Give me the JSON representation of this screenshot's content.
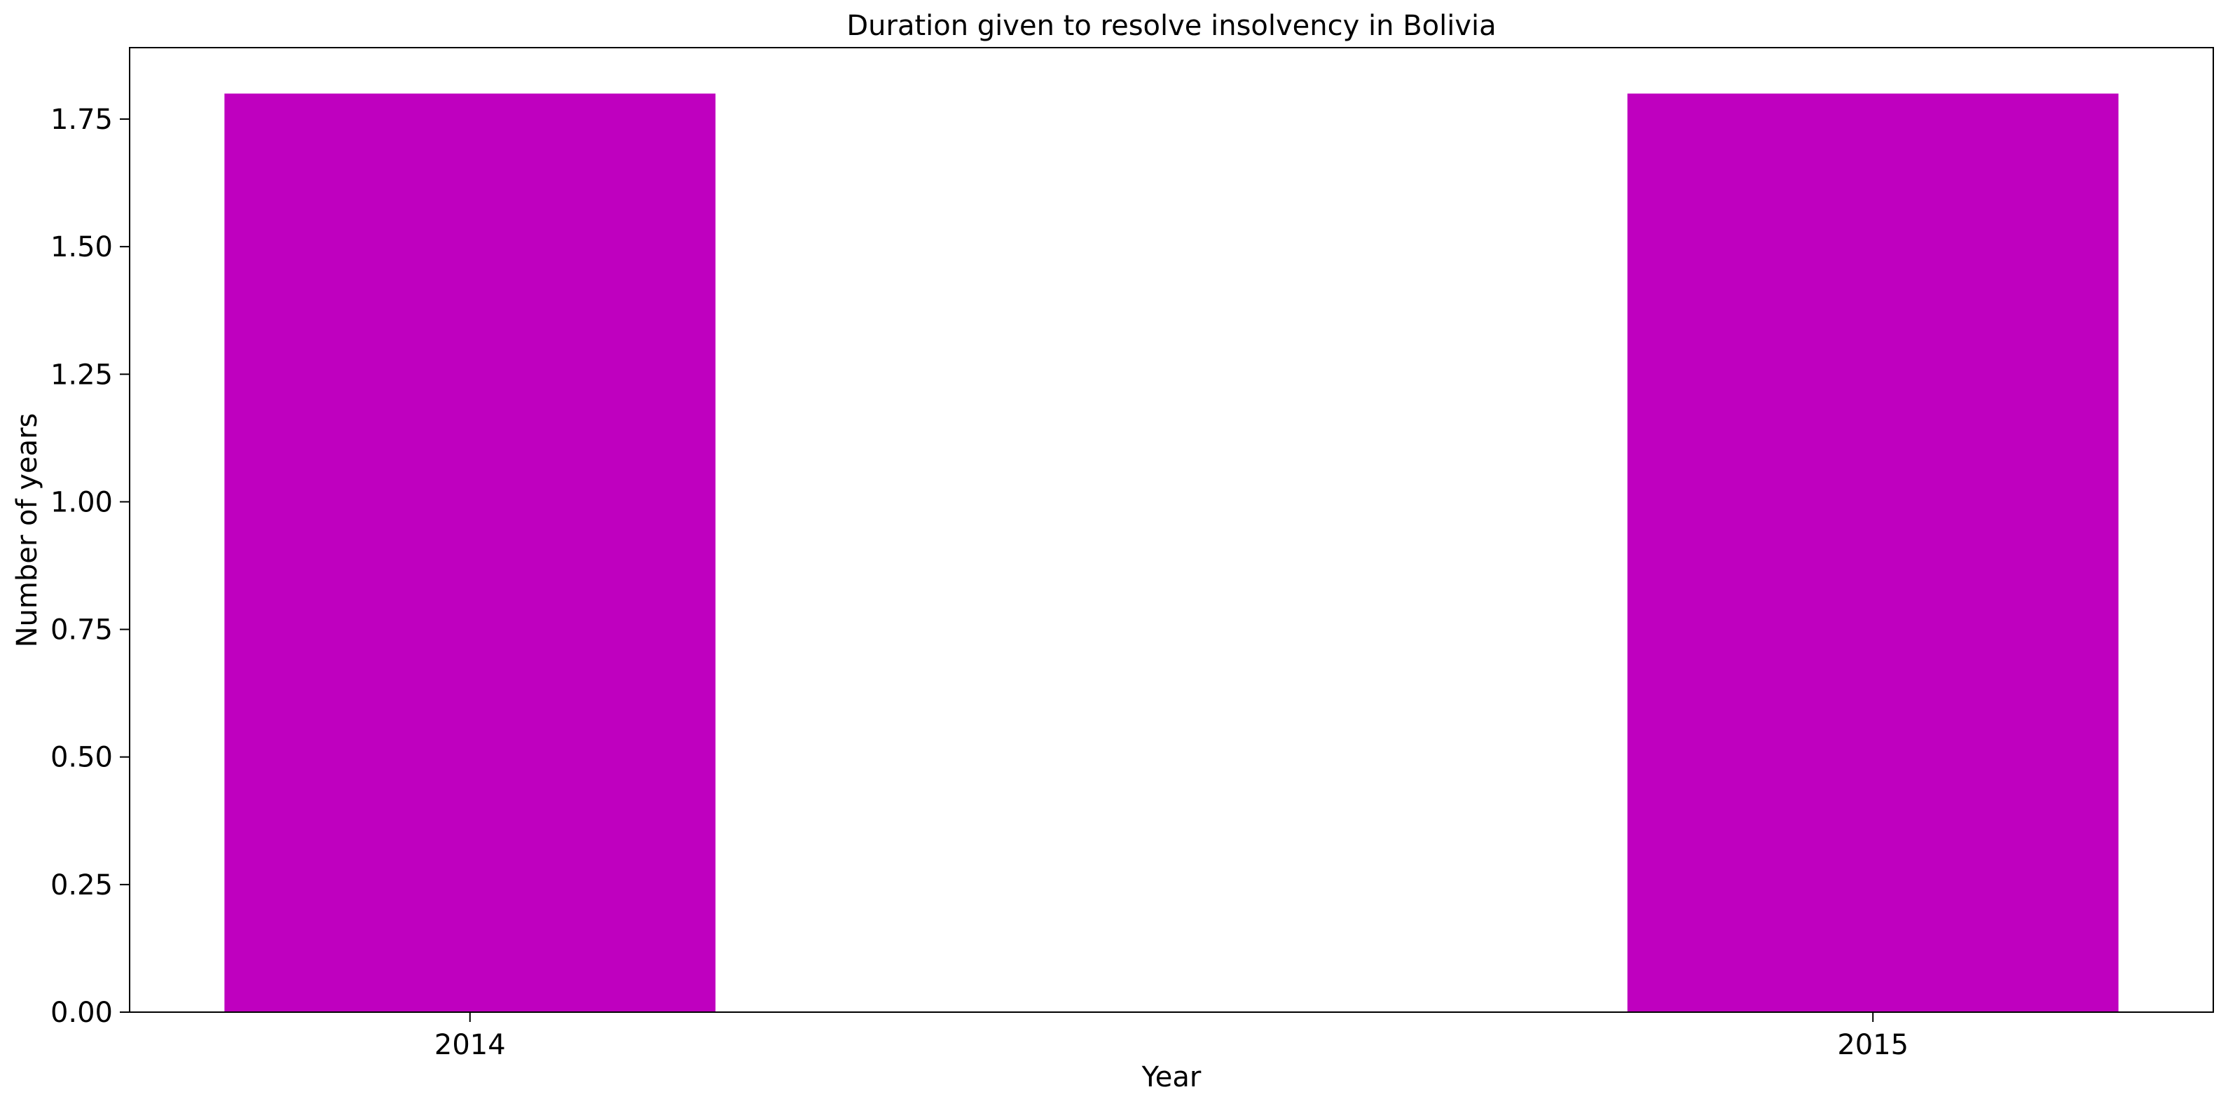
{
  "chart_data": {
    "type": "bar",
    "title": "Duration given to resolve insolvency in Bolivia",
    "xlabel": "Year",
    "ylabel": "Number of years",
    "categories": [
      "2014",
      "2015"
    ],
    "values": [
      1.8,
      1.8
    ],
    "ylim": [
      0,
      1.89
    ],
    "yticks": [
      0.0,
      0.25,
      0.5,
      0.75,
      1.0,
      1.25,
      1.5,
      1.75
    ],
    "ytick_labels": [
      "0.00",
      "0.25",
      "0.50",
      "0.75",
      "1.00",
      "1.25",
      "1.50",
      "1.75"
    ],
    "bar_color": "#bf00bf",
    "grid": false,
    "legend": "none"
  }
}
